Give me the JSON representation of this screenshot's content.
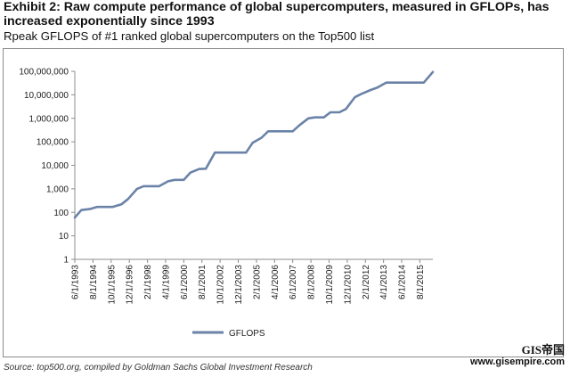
{
  "header": {
    "title": "Exhibit 2: Raw compute performance of global supercomputers, measured in GFLOPs, has increased exponentially since 1993",
    "subtitle": "Rpeak GFLOPS of #1 ranked global supercomputers on the Top500 list"
  },
  "footer": {
    "source": "Source: top500.org, compiled by Goldman Sachs Global Investment Research"
  },
  "watermark": {
    "logo_text": "GIS帝国",
    "url": "www.gisempire.com"
  },
  "colors": {
    "series": "#6b83a8",
    "axis": "#8c8c8c",
    "text": "#222222"
  },
  "chart_data": {
    "type": "line",
    "title": "",
    "xlabel": "",
    "ylabel": "",
    "y_scale": "log",
    "ylim": [
      1,
      100000000
    ],
    "y_ticks": [
      1,
      10,
      100,
      1000,
      10000,
      100000,
      1000000,
      10000000,
      100000000
    ],
    "y_tick_labels": [
      "1",
      "10",
      "100",
      "1,000",
      "10,000",
      "100,000",
      "1,000,000",
      "10,000,000",
      "100,000,000"
    ],
    "x_tick_labels": [
      "6/1/1993",
      "8/1/1994",
      "10/1/1995",
      "12/1/1996",
      "2/1/1998",
      "4/1/1999",
      "6/1/2000",
      "8/1/2001",
      "10/1/2002",
      "12/1/2003",
      "2/1/2005",
      "4/1/2006",
      "6/1/2007",
      "8/1/2008",
      "10/1/2009",
      "12/1/2010",
      "2/1/2012",
      "4/1/2013",
      "6/1/2014",
      "8/1/2015"
    ],
    "grid": false,
    "legend": "bottom-center",
    "series": [
      {
        "name": "GFLOPS",
        "x": [
          "6/1/1993",
          "11/1/1993",
          "6/1/1994",
          "11/1/1994",
          "6/1/1995",
          "11/1/1995",
          "6/1/1996",
          "11/1/1996",
          "6/1/1997",
          "11/1/1997",
          "6/1/1998",
          "11/1/1998",
          "6/1/1999",
          "11/1/1999",
          "6/1/2000",
          "11/1/2000",
          "6/1/2001",
          "11/1/2001",
          "6/1/2002",
          "11/1/2002",
          "6/1/2003",
          "11/1/2003",
          "6/1/2004",
          "11/1/2004",
          "6/1/2005",
          "11/1/2005",
          "6/1/2006",
          "11/1/2006",
          "6/1/2007",
          "11/1/2007",
          "6/1/2008",
          "11/1/2008",
          "6/1/2009",
          "11/1/2009",
          "6/1/2010",
          "11/1/2010",
          "6/1/2011",
          "11/1/2011",
          "6/1/2012",
          "11/1/2012",
          "6/1/2013",
          "11/1/2013",
          "6/1/2014",
          "11/1/2014",
          "6/1/2015",
          "11/1/2015",
          "6/1/2016"
        ],
        "values": [
          60,
          125,
          140,
          170,
          170,
          170,
          220,
          370,
          1000,
          1300,
          1300,
          1300,
          2100,
          2400,
          2400,
          4900,
          7000,
          7200,
          35000,
          35000,
          35000,
          35000,
          35000,
          90000,
          150000,
          280000,
          280000,
          280000,
          280000,
          500000,
          1000000,
          1100000,
          1100000,
          1800000,
          1800000,
          2500000,
          8000000,
          11000000,
          16000000,
          20000000,
          33000000,
          33000000,
          33000000,
          33000000,
          33000000,
          33000000,
          93000000
        ]
      }
    ]
  }
}
